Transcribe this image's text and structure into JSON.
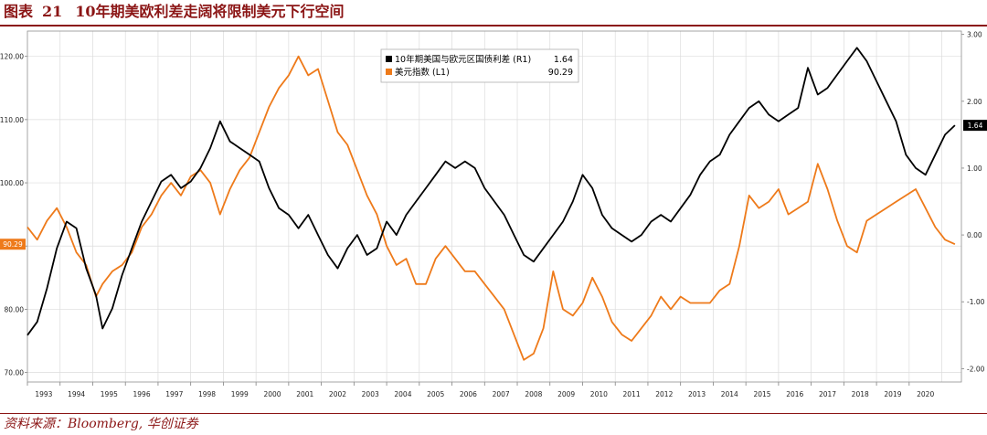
{
  "header": {
    "figure_label": "图表",
    "figure_number": "21",
    "title": "10年期美欧利差走阔将限制美元下行空间"
  },
  "footer": {
    "source": "资料来源：Bloomberg, 华创证券"
  },
  "chart_data": {
    "type": "line",
    "x_labels": [
      "1993",
      "1994",
      "1995",
      "1996",
      "1997",
      "1998",
      "1999",
      "2000",
      "2001",
      "2002",
      "2003",
      "2004",
      "2005",
      "2006",
      "2007",
      "2008",
      "2009",
      "2010",
      "2011",
      "2012",
      "2013",
      "2014",
      "2015",
      "2016",
      "2017",
      "2018",
      "2019",
      "2020"
    ],
    "left_axis": {
      "ticks": [
        "70.00",
        "80.00",
        "90.00",
        "100.00",
        "110.00",
        "120.00"
      ],
      "tick_values": [
        70,
        80,
        90,
        100,
        110,
        120
      ],
      "range": [
        68.5,
        124
      ]
    },
    "right_axis": {
      "ticks": [
        "-2.00",
        "-1.00",
        "0.00",
        "1.00",
        "2.00",
        "3.00"
      ],
      "tick_values": [
        -2,
        -1,
        0,
        1,
        2,
        3
      ],
      "range": [
        -2.2,
        3.05
      ]
    },
    "grid": true,
    "legend_position": "top-center",
    "series": [
      {
        "name": "10年期美国与欧元区国债利差 (R1)",
        "last_value": "1.64",
        "axis": "right",
        "color": "#000000",
        "x": [
          1993.0,
          1993.3,
          1993.6,
          1993.9,
          1994.2,
          1994.5,
          1994.8,
          1995.1,
          1995.3,
          1995.6,
          1995.9,
          1996.2,
          1996.5,
          1996.8,
          1997.1,
          1997.4,
          1997.7,
          1998.0,
          1998.3,
          1998.6,
          1998.9,
          1999.2,
          1999.5,
          1999.8,
          2000.1,
          2000.4,
          2000.7,
          2001.0,
          2001.3,
          2001.6,
          2001.9,
          2002.2,
          2002.5,
          2002.8,
          2003.1,
          2003.4,
          2003.7,
          2004.0,
          2004.3,
          2004.6,
          2004.9,
          2005.2,
          2005.5,
          2005.8,
          2006.1,
          2006.4,
          2006.7,
          2007.0,
          2007.3,
          2007.6,
          2007.9,
          2008.2,
          2008.5,
          2008.8,
          2009.1,
          2009.4,
          2009.7,
          2010.0,
          2010.3,
          2010.6,
          2010.9,
          2011.2,
          2011.5,
          2011.8,
          2012.1,
          2012.4,
          2012.7,
          2013.0,
          2013.3,
          2013.6,
          2013.9,
          2014.2,
          2014.5,
          2014.8,
          2015.1,
          2015.4,
          2015.7,
          2016.0,
          2016.3,
          2016.6,
          2016.9,
          2017.2,
          2017.5,
          2017.8,
          2018.1,
          2018.4,
          2018.7,
          2019.0,
          2019.3,
          2019.6,
          2019.9,
          2020.2,
          2020.5,
          2020.8,
          2021.1,
          2021.4
        ],
        "y": [
          -1.5,
          -1.3,
          -0.8,
          -0.2,
          0.2,
          0.1,
          -0.5,
          -0.9,
          -1.4,
          -1.1,
          -0.6,
          -0.2,
          0.2,
          0.5,
          0.8,
          0.9,
          0.7,
          0.8,
          1.0,
          1.3,
          1.7,
          1.4,
          1.3,
          1.2,
          1.1,
          0.7,
          0.4,
          0.3,
          0.1,
          0.3,
          0.0,
          -0.3,
          -0.5,
          -0.2,
          0.0,
          -0.3,
          -0.2,
          0.2,
          0.0,
          0.3,
          0.5,
          0.7,
          0.9,
          1.1,
          1.0,
          1.1,
          1.0,
          0.7,
          0.5,
          0.3,
          0.0,
          -0.3,
          -0.4,
          -0.2,
          0.0,
          0.2,
          0.5,
          0.9,
          0.7,
          0.3,
          0.1,
          0.0,
          -0.1,
          0.0,
          0.2,
          0.3,
          0.2,
          0.4,
          0.6,
          0.9,
          1.1,
          1.2,
          1.5,
          1.7,
          1.9,
          2.0,
          1.8,
          1.7,
          1.8,
          1.9,
          2.5,
          2.1,
          2.2,
          2.4,
          2.6,
          2.8,
          2.6,
          2.3,
          2.0,
          1.7,
          1.2,
          1.0,
          0.9,
          1.2,
          1.5,
          1.64
        ]
      },
      {
        "name": "美元指数 (L1)",
        "last_value": "90.29",
        "axis": "left",
        "color": "#ee7a1a",
        "x": [
          1993.0,
          1993.3,
          1993.6,
          1993.9,
          1994.2,
          1994.5,
          1994.8,
          1995.1,
          1995.3,
          1995.6,
          1995.9,
          1996.2,
          1996.5,
          1996.8,
          1997.1,
          1997.4,
          1997.7,
          1998.0,
          1998.3,
          1998.6,
          1998.9,
          1999.2,
          1999.5,
          1999.8,
          2000.1,
          2000.4,
          2000.7,
          2001.0,
          2001.3,
          2001.6,
          2001.9,
          2002.2,
          2002.5,
          2002.8,
          2003.1,
          2003.4,
          2003.7,
          2004.0,
          2004.3,
          2004.6,
          2004.9,
          2005.2,
          2005.5,
          2005.8,
          2006.1,
          2006.4,
          2006.7,
          2007.0,
          2007.3,
          2007.6,
          2007.9,
          2008.2,
          2008.5,
          2008.8,
          2009.1,
          2009.4,
          2009.7,
          2010.0,
          2010.3,
          2010.6,
          2010.9,
          2011.2,
          2011.5,
          2011.8,
          2012.1,
          2012.4,
          2012.7,
          2013.0,
          2013.3,
          2013.6,
          2013.9,
          2014.2,
          2014.5,
          2014.8,
          2015.1,
          2015.4,
          2015.7,
          2016.0,
          2016.3,
          2016.6,
          2016.9,
          2017.2,
          2017.5,
          2017.8,
          2018.1,
          2018.4,
          2018.7,
          2019.0,
          2019.3,
          2019.6,
          2019.9,
          2020.2,
          2020.5,
          2020.8,
          2021.1,
          2021.4
        ],
        "y": [
          93,
          91,
          94,
          96,
          93,
          89,
          87,
          82,
          84,
          86,
          87,
          89,
          93,
          95,
          98,
          100,
          98,
          101,
          102,
          100,
          95,
          99,
          102,
          104,
          108,
          112,
          115,
          117,
          120,
          117,
          118,
          113,
          108,
          106,
          102,
          98,
          95,
          90,
          87,
          88,
          84,
          84,
          88,
          90,
          88,
          86,
          86,
          84,
          82,
          80,
          76,
          72,
          73,
          77,
          86,
          80,
          79,
          81,
          85,
          82,
          78,
          76,
          75,
          77,
          79,
          82,
          80,
          82,
          81,
          81,
          81,
          83,
          84,
          90,
          98,
          96,
          97,
          99,
          95,
          96,
          97,
          103,
          99,
          94,
          90,
          89,
          94,
          95,
          96,
          97,
          98,
          99,
          96,
          93,
          91,
          90.29
        ]
      }
    ]
  }
}
